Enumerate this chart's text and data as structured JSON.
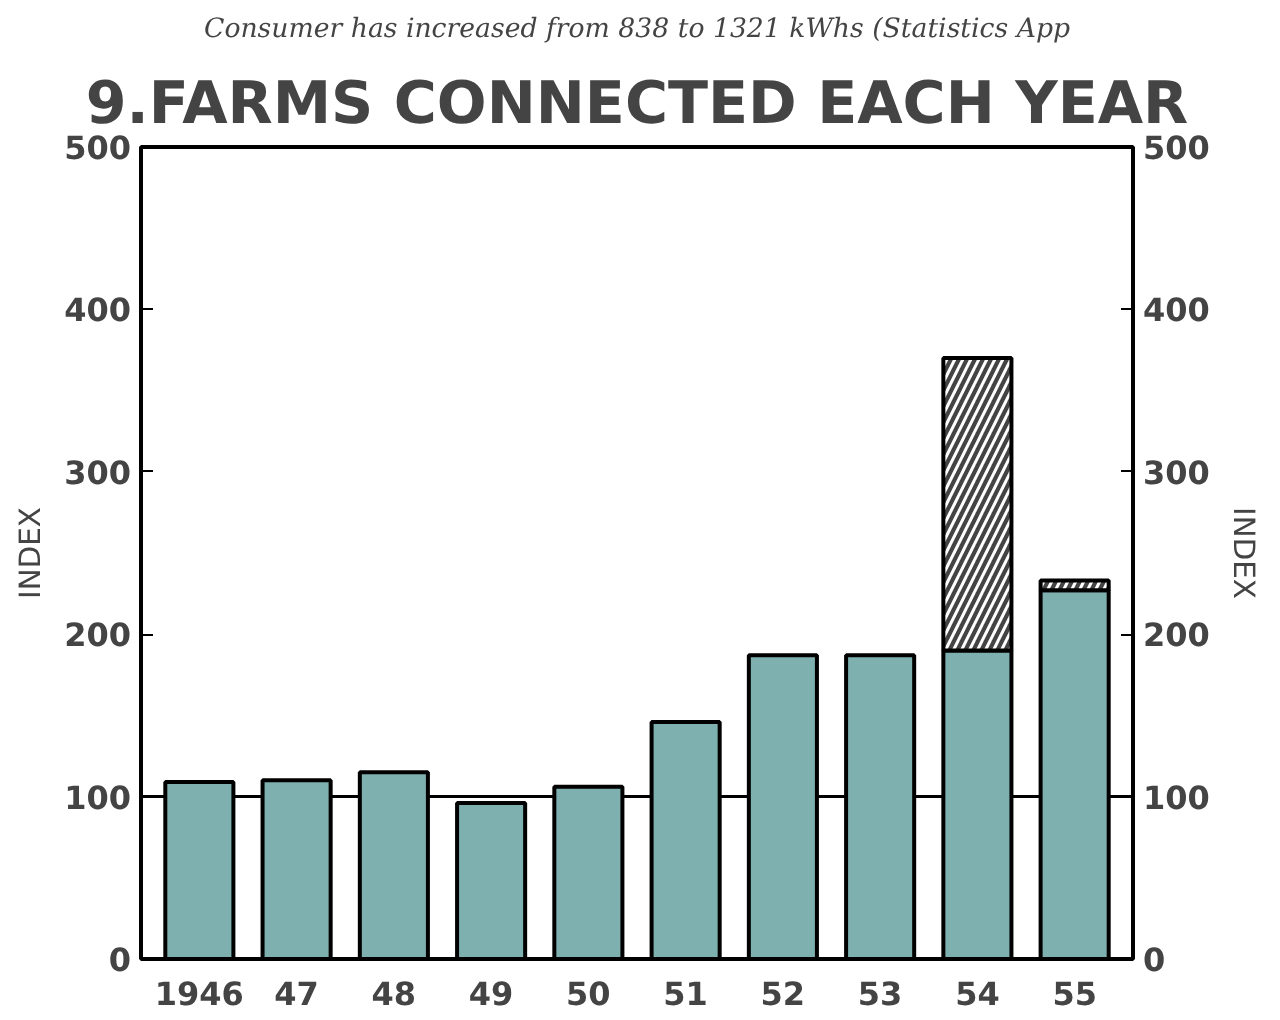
{
  "chart_data": {
    "type": "bar",
    "title": "9.FARMS CONNECTED EACH YEAR",
    "ylabel": "INDEX",
    "y2label": "INDEX",
    "annotations": [
      "Consumer has increased from 838 to 1321 kWhs (Statistics App"
    ],
    "categories": [
      "1946",
      "47",
      "48",
      "49",
      "50",
      "51",
      "52",
      "53",
      "54",
      "55"
    ],
    "stacked": true,
    "series": [
      {
        "color": "#7fb0b0",
        "values": [
          109,
          110,
          115,
          96,
          106,
          146,
          187,
          187,
          190,
          227
        ]
      },
      {
        "color": "#444444",
        "values": [
          null,
          null,
          null,
          null,
          null,
          null,
          null,
          null,
          180,
          6
        ]
      }
    ],
    "ylim": [
      0,
      500
    ],
    "yticks": [
      0,
      100,
      200,
      300,
      400,
      500
    ],
    "y2lim": [
      0,
      500
    ],
    "y2ticks": [
      0,
      100,
      200,
      300,
      400,
      500
    ],
    "ref_lines": [
      {
        "axis": "y",
        "value": 100,
        "label": null,
        "color": "#000000"
      }
    ],
    "grid": false
  }
}
